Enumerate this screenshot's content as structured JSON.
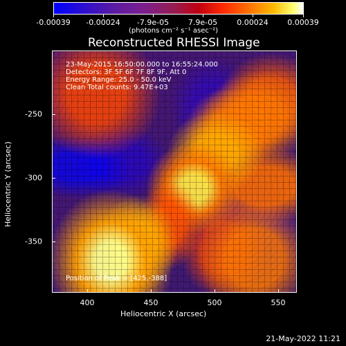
{
  "header": {
    "title": "Reconstructed RHESSI Image",
    "units": "(photons cm⁻² s⁻¹ asec⁻²)"
  },
  "colorbar": {
    "labels": [
      "-0.00039",
      "-0.00024",
      "-7.9e-05",
      "7.9e-05",
      "0.00024",
      "0.00039"
    ]
  },
  "overlay": {
    "line1": "23-May-2015 16:50:00.000 to 16:55:24.000",
    "line2": "Detectors: 3F 5F 6F 7F 8F 9F, Att 0",
    "line3": "Energy Range: 25.0 - 50.0 keV",
    "line4": "Clean     Total counts: 9.47E+03",
    "position": "Position of Peak = [425,-388]"
  },
  "axes": {
    "x_ticks": [
      "400",
      "450",
      "500",
      "550"
    ],
    "y_ticks": [
      "-250",
      "-300",
      "-350"
    ],
    "x_title": "Heliocentric X (arcsec)",
    "y_title": "Heliocentric Y (arcsec)"
  },
  "footer": {
    "date": "21-May-2022 11:21"
  }
}
